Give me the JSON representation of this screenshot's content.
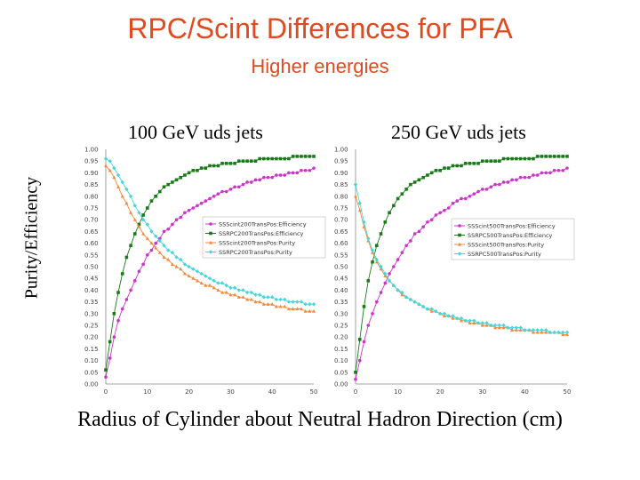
{
  "slide": {
    "title": "RPC/Scint Differences for PFA",
    "subtitle": "Higher energies",
    "y_label": "Purity/Efficiency",
    "x_label": "Radius of Cylinder about Neutral Hadron Direction (cm)"
  },
  "colors": {
    "title": "#e04a1e",
    "magenta": "#cc33cc",
    "green": "#1a7a1a",
    "orange": "#f08a3a",
    "cyan": "#44d6dc"
  },
  "chart_data": [
    {
      "type": "line",
      "title": "100 GeV uds jets",
      "xlabel": "Radius of Cylinder about Neutral Hadron Direction (cm)",
      "ylabel": "Purity/Efficiency",
      "xlim": [
        0,
        50
      ],
      "ylim": [
        0.0,
        1.0
      ],
      "x_ticks": [
        "0",
        "10",
        "20",
        "30",
        "40",
        "50"
      ],
      "y_ticks": [
        "0.00",
        "0.05",
        "0.10",
        "0.15",
        "0.20",
        "0.25",
        "0.30",
        "0.35",
        "0.40",
        "0.45",
        "0.50",
        "0.55",
        "0.60",
        "0.65",
        "0.70",
        "0.75",
        "0.80",
        "0.85",
        "0.90",
        "0.95",
        "1.00"
      ],
      "x": [
        0,
        1,
        2,
        3,
        4,
        5,
        6,
        7,
        8,
        9,
        10,
        11,
        12,
        13,
        14,
        15,
        16,
        17,
        18,
        19,
        20,
        21,
        22,
        23,
        24,
        25,
        26,
        27,
        28,
        29,
        30,
        31,
        32,
        33,
        34,
        35,
        36,
        37,
        38,
        39,
        40,
        41,
        42,
        43,
        44,
        45,
        46,
        47,
        48,
        49,
        50
      ],
      "series": [
        {
          "name": "SSScint200TransPos:Efficiency",
          "color": "#cc33cc",
          "marker": "circle",
          "values": [
            0.03,
            0.11,
            0.2,
            0.27,
            0.32,
            0.36,
            0.4,
            0.44,
            0.48,
            0.51,
            0.55,
            0.57,
            0.6,
            0.62,
            0.65,
            0.66,
            0.68,
            0.7,
            0.71,
            0.73,
            0.74,
            0.75,
            0.76,
            0.77,
            0.78,
            0.79,
            0.8,
            0.81,
            0.82,
            0.82,
            0.83,
            0.84,
            0.84,
            0.85,
            0.86,
            0.86,
            0.87,
            0.87,
            0.88,
            0.88,
            0.88,
            0.89,
            0.89,
            0.89,
            0.9,
            0.9,
            0.9,
            0.91,
            0.91,
            0.91,
            0.92
          ]
        },
        {
          "name": "SSRPC200TransPos:Efficiency",
          "color": "#1a7a1a",
          "marker": "square",
          "values": [
            0.06,
            0.18,
            0.3,
            0.39,
            0.47,
            0.54,
            0.59,
            0.64,
            0.68,
            0.72,
            0.75,
            0.78,
            0.8,
            0.82,
            0.84,
            0.85,
            0.86,
            0.87,
            0.88,
            0.89,
            0.9,
            0.91,
            0.91,
            0.92,
            0.92,
            0.93,
            0.93,
            0.93,
            0.94,
            0.94,
            0.94,
            0.94,
            0.95,
            0.95,
            0.95,
            0.95,
            0.95,
            0.96,
            0.96,
            0.96,
            0.96,
            0.96,
            0.96,
            0.96,
            0.96,
            0.97,
            0.97,
            0.97,
            0.97,
            0.97,
            0.97
          ]
        },
        {
          "name": "SSScint200TransPos:Purity",
          "color": "#f08a3a",
          "marker": "triangle",
          "values": [
            0.93,
            0.91,
            0.88,
            0.84,
            0.8,
            0.77,
            0.73,
            0.7,
            0.67,
            0.64,
            0.62,
            0.6,
            0.58,
            0.56,
            0.54,
            0.53,
            0.51,
            0.5,
            0.49,
            0.47,
            0.46,
            0.45,
            0.44,
            0.43,
            0.42,
            0.42,
            0.41,
            0.4,
            0.39,
            0.39,
            0.38,
            0.38,
            0.37,
            0.37,
            0.36,
            0.36,
            0.35,
            0.35,
            0.34,
            0.34,
            0.34,
            0.33,
            0.33,
            0.33,
            0.32,
            0.32,
            0.32,
            0.32,
            0.31,
            0.31,
            0.31
          ]
        },
        {
          "name": "SSRPC200TransPos:Purity",
          "color": "#44d6dc",
          "marker": "diamond",
          "values": [
            0.96,
            0.95,
            0.92,
            0.89,
            0.86,
            0.83,
            0.8,
            0.76,
            0.73,
            0.7,
            0.68,
            0.65,
            0.63,
            0.61,
            0.59,
            0.57,
            0.56,
            0.54,
            0.53,
            0.51,
            0.5,
            0.49,
            0.48,
            0.47,
            0.46,
            0.45,
            0.44,
            0.43,
            0.43,
            0.42,
            0.41,
            0.41,
            0.4,
            0.4,
            0.39,
            0.39,
            0.38,
            0.38,
            0.37,
            0.37,
            0.37,
            0.36,
            0.36,
            0.36,
            0.35,
            0.35,
            0.35,
            0.35,
            0.34,
            0.34,
            0.34
          ]
        }
      ]
    },
    {
      "type": "line",
      "title": "250 GeV uds jets",
      "xlabel": "Radius of Cylinder about Neutral Hadron Direction (cm)",
      "ylabel": "Purity/Efficiency",
      "xlim": [
        0,
        50
      ],
      "ylim": [
        0.0,
        1.0
      ],
      "x_ticks": [
        "0",
        "10",
        "20",
        "30",
        "40",
        "50"
      ],
      "y_ticks": [
        "0.00",
        "0.05",
        "0.10",
        "0.15",
        "0.20",
        "0.25",
        "0.30",
        "0.35",
        "0.40",
        "0.45",
        "0.50",
        "0.55",
        "0.60",
        "0.65",
        "0.70",
        "0.75",
        "0.80",
        "0.85",
        "0.90",
        "0.95",
        "1.00"
      ],
      "x": [
        0,
        1,
        2,
        3,
        4,
        5,
        6,
        7,
        8,
        9,
        10,
        11,
        12,
        13,
        14,
        15,
        16,
        17,
        18,
        19,
        20,
        21,
        22,
        23,
        24,
        25,
        26,
        27,
        28,
        29,
        30,
        31,
        32,
        33,
        34,
        35,
        36,
        37,
        38,
        39,
        40,
        41,
        42,
        43,
        44,
        45,
        46,
        47,
        48,
        49,
        50
      ],
      "series": [
        {
          "name": "SSScint500TransPos:Efficiency",
          "color": "#cc33cc",
          "marker": "circle",
          "values": [
            0.02,
            0.1,
            0.18,
            0.25,
            0.3,
            0.35,
            0.39,
            0.43,
            0.47,
            0.5,
            0.53,
            0.56,
            0.59,
            0.61,
            0.64,
            0.65,
            0.67,
            0.69,
            0.7,
            0.72,
            0.73,
            0.74,
            0.75,
            0.77,
            0.78,
            0.79,
            0.79,
            0.8,
            0.81,
            0.82,
            0.83,
            0.83,
            0.84,
            0.85,
            0.85,
            0.86,
            0.86,
            0.87,
            0.87,
            0.88,
            0.88,
            0.88,
            0.89,
            0.89,
            0.9,
            0.9,
            0.9,
            0.91,
            0.91,
            0.91,
            0.92
          ]
        },
        {
          "name": "SSRPC500TransPos:Efficiency",
          "color": "#1a7a1a",
          "marker": "square",
          "values": [
            0.05,
            0.19,
            0.33,
            0.44,
            0.52,
            0.59,
            0.64,
            0.69,
            0.73,
            0.76,
            0.79,
            0.81,
            0.83,
            0.85,
            0.86,
            0.87,
            0.88,
            0.89,
            0.9,
            0.91,
            0.91,
            0.92,
            0.92,
            0.93,
            0.93,
            0.93,
            0.94,
            0.94,
            0.94,
            0.94,
            0.95,
            0.95,
            0.95,
            0.95,
            0.95,
            0.96,
            0.96,
            0.96,
            0.96,
            0.96,
            0.96,
            0.96,
            0.96,
            0.97,
            0.97,
            0.97,
            0.97,
            0.97,
            0.97,
            0.97,
            0.97
          ]
        },
        {
          "name": "SSScint500TransPos:Purity",
          "color": "#f08a3a",
          "marker": "triangle",
          "values": [
            0.8,
            0.74,
            0.67,
            0.61,
            0.56,
            0.52,
            0.49,
            0.46,
            0.44,
            0.42,
            0.4,
            0.38,
            0.37,
            0.36,
            0.35,
            0.34,
            0.33,
            0.32,
            0.31,
            0.31,
            0.3,
            0.29,
            0.29,
            0.28,
            0.28,
            0.27,
            0.27,
            0.26,
            0.26,
            0.26,
            0.25,
            0.25,
            0.25,
            0.24,
            0.24,
            0.24,
            0.24,
            0.23,
            0.23,
            0.23,
            0.23,
            0.23,
            0.22,
            0.22,
            0.22,
            0.22,
            0.22,
            0.22,
            0.22,
            0.21,
            0.21
          ]
        },
        {
          "name": "SSRPC500TransPos:Purity",
          "color": "#44d6dc",
          "marker": "diamond",
          "values": [
            0.85,
            0.77,
            0.69,
            0.62,
            0.57,
            0.53,
            0.5,
            0.47,
            0.44,
            0.42,
            0.4,
            0.39,
            0.37,
            0.36,
            0.35,
            0.34,
            0.33,
            0.32,
            0.32,
            0.31,
            0.3,
            0.3,
            0.29,
            0.29,
            0.28,
            0.28,
            0.27,
            0.27,
            0.27,
            0.26,
            0.26,
            0.26,
            0.25,
            0.25,
            0.25,
            0.25,
            0.24,
            0.24,
            0.24,
            0.24,
            0.23,
            0.23,
            0.23,
            0.23,
            0.23,
            0.23,
            0.22,
            0.22,
            0.22,
            0.22,
            0.22
          ]
        }
      ]
    }
  ]
}
